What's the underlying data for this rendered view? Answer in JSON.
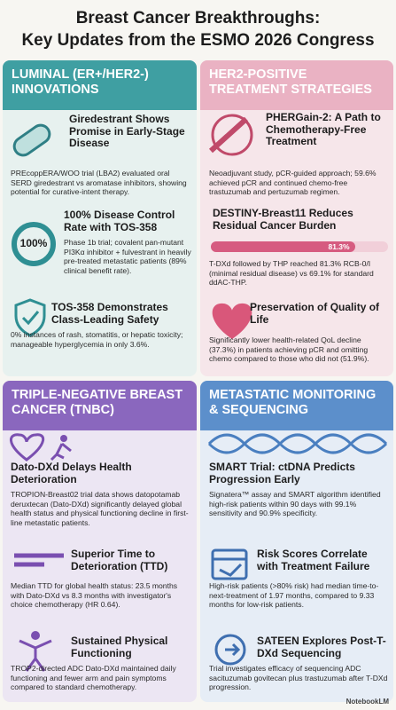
{
  "header": {
    "title_line1": "Breast Cancer Breakthroughs:",
    "title_line2": "Key Updates from the ESMO 2026 Congress"
  },
  "sections": [
    {
      "heading": "LUMINAL (ER+/HER2-) INNOVATIONS",
      "items": [
        {
          "title": "Giredestrant Shows Promise in Early-Stage Disease",
          "body": "PREcoppERA/WOO trial (LBA2) evaluated oral SERD giredestrant vs aromatase inhibitors, showing potential for curative-intent therapy."
        },
        {
          "title": "100% Disease Control Rate with TOS-358",
          "body": "Phase 1b trial; covalent pan-mutant PI3Kα inhibitor + fulvestrant in heavily pre-treated metastatic patients (89% clinical benefit rate).",
          "badge": "100%"
        },
        {
          "title": "TOS-358 Demonstrates Class-Leading Safety",
          "body": "0% instances of rash, stomatitis, or hepatic toxicity; manageable hyperglycemia in only 3.6%."
        }
      ]
    },
    {
      "heading": "HER2-POSITIVE TREATMENT STRATEGIES",
      "items": [
        {
          "title": "PHERGain-2: A Path to Chemotherapy-Free Treatment",
          "body": "Neoadjuvant study, pCR-guided approach; 59.6% achieved pCR and continued chemo-free trastuzumab and pertuzumab regimen."
        },
        {
          "title": "DESTINY-Breast11 Reduces Residual Cancer Burden",
          "body": "T-DXd followed by THP reached 81.3% RCB-0/I (minimal residual disease) vs 69.1% for standard ddAC-THP.",
          "bar": {
            "value": 81.3,
            "label": "81.3%"
          }
        },
        {
          "title": "Preservation of Quality of Life",
          "body": "Significantly lower health-related QoL decline (37.3%) in patients achieving pCR and omitting chemo compared to those who did not (51.9%)."
        }
      ]
    },
    {
      "heading": "TRIPLE-NEGATIVE BREAST CANCER (TNBC)",
      "items": [
        {
          "title": "Dato-DXd Delays Health Deterioration",
          "body": "TROPION-Breast02 trial data shows datopotamab deruxtecan (Dato-DXd) significantly delayed global health status and physical functioning decline in first-line metastatic patients."
        },
        {
          "title": "Superior Time to Deterioration (TTD)",
          "body": "Median TTD for global health status: 23.5 months with Dato-DXd vs 8.3 months with investigator's choice chemotherapy (HR 0.64)."
        },
        {
          "title": "Sustained Physical Functioning",
          "body": "TROP2-directed ADC Dato-DXd maintained daily functioning and fewer arm and pain symptoms compared to standard chemotherapy."
        }
      ]
    },
    {
      "heading": "METASTATIC MONITORING & SEQUENCING",
      "items": [
        {
          "title": "SMART Trial: ctDNA Predicts Progression Early",
          "body": "Signatera™ assay and SMART algorithm identified high-risk patients within 90 days with 99.1% sensitivity and 90.9% specificity."
        },
        {
          "title": "Risk Scores Correlate with Treatment Failure",
          "body": "High-risk patients (>80% risk) had median time-to-next-treatment of 1.97 months, compared to 9.33 months for low-risk patients."
        },
        {
          "title": "SATEEN Explores Post-T-DXd Sequencing",
          "body": "Trial investigates efficacy of sequencing ADC sacituzumab govitecan plus trastuzumab after T-DXd progression."
        }
      ]
    }
  ],
  "footer": "NotebookLM"
}
